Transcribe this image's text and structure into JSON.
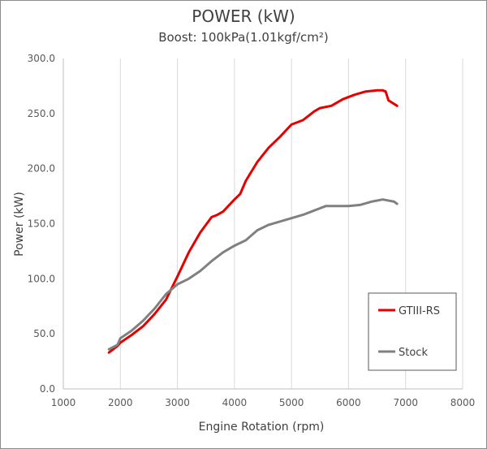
{
  "chart_data": {
    "type": "line",
    "title": "POWER (kW)",
    "subtitle": "Boost: 100kPa(1.01kgf/cm²)",
    "xlabel": "Engine Rotation (rpm)",
    "ylabel": "Power (kW)",
    "xlim": [
      1000,
      8000
    ],
    "ylim": [
      0,
      300
    ],
    "x_ticks": [
      "1000",
      "2000",
      "3000",
      "4000",
      "5000",
      "6000",
      "7000",
      "8000"
    ],
    "y_ticks": [
      "0.0",
      "50.0",
      "100.0",
      "150.0",
      "200.0",
      "250.0",
      "300.0"
    ],
    "grid": "vertical",
    "legend_position": "bottom-right",
    "series": [
      {
        "name": "GTIII-RS",
        "color": "#e60000",
        "points": [
          [
            1800,
            33
          ],
          [
            1950,
            39
          ],
          [
            2000,
            42
          ],
          [
            2200,
            49
          ],
          [
            2400,
            57
          ],
          [
            2600,
            68
          ],
          [
            2800,
            81
          ],
          [
            3000,
            102
          ],
          [
            3200,
            124
          ],
          [
            3400,
            142
          ],
          [
            3600,
            156
          ],
          [
            3700,
            158
          ],
          [
            3800,
            161
          ],
          [
            4000,
            172
          ],
          [
            4100,
            177
          ],
          [
            4200,
            189
          ],
          [
            4400,
            206
          ],
          [
            4600,
            219
          ],
          [
            4800,
            229
          ],
          [
            5000,
            240
          ],
          [
            5200,
            244
          ],
          [
            5400,
            252
          ],
          [
            5500,
            255
          ],
          [
            5700,
            257
          ],
          [
            5900,
            263
          ],
          [
            6100,
            267
          ],
          [
            6300,
            270
          ],
          [
            6500,
            271
          ],
          [
            6600,
            271
          ],
          [
            6650,
            270
          ],
          [
            6700,
            262
          ],
          [
            6850,
            257
          ]
        ]
      },
      {
        "name": "Stock",
        "color": "#808080",
        "points": [
          [
            1800,
            36
          ],
          [
            1950,
            40
          ],
          [
            2000,
            46
          ],
          [
            2200,
            53
          ],
          [
            2400,
            62
          ],
          [
            2600,
            73
          ],
          [
            2800,
            86
          ],
          [
            3000,
            95
          ],
          [
            3200,
            100
          ],
          [
            3400,
            107
          ],
          [
            3600,
            116
          ],
          [
            3800,
            124
          ],
          [
            4000,
            130
          ],
          [
            4200,
            135
          ],
          [
            4400,
            144
          ],
          [
            4600,
            149
          ],
          [
            4800,
            152
          ],
          [
            5000,
            155
          ],
          [
            5200,
            158
          ],
          [
            5400,
            162
          ],
          [
            5600,
            166
          ],
          [
            5800,
            166
          ],
          [
            6000,
            166
          ],
          [
            6200,
            167
          ],
          [
            6400,
            170
          ],
          [
            6600,
            172
          ],
          [
            6800,
            170
          ],
          [
            6850,
            168
          ]
        ]
      }
    ]
  }
}
